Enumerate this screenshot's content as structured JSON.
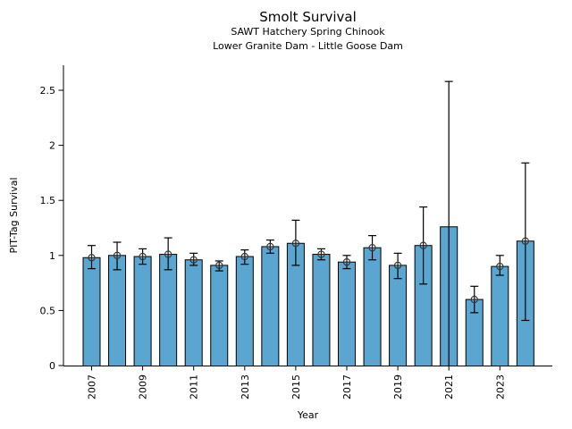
{
  "header": {
    "title": "Smolt Survival",
    "subtitle1": "SAWT Hatchery Spring Chinook",
    "subtitle2": "Lower Granite Dam - Little Goose Dam"
  },
  "chart_data": {
    "type": "bar",
    "title": "Smolt Survival",
    "subtitles": [
      "SAWT Hatchery Spring Chinook",
      "Lower Granite Dam - Little Goose Dam"
    ],
    "xlabel": "Year",
    "ylabel": "PIT-Tag Survival",
    "categories": [
      2007,
      2008,
      2009,
      2010,
      2011,
      2012,
      2013,
      2014,
      2015,
      2016,
      2017,
      2018,
      2019,
      2020,
      2021,
      2022,
      2023,
      2024
    ],
    "values": [
      0.98,
      1.0,
      0.99,
      1.01,
      0.96,
      0.91,
      0.99,
      1.08,
      1.11,
      1.01,
      0.94,
      1.07,
      0.91,
      1.09,
      1.26,
      0.6,
      0.9,
      1.13
    ],
    "error_low": [
      0.88,
      0.87,
      0.92,
      0.87,
      0.91,
      0.86,
      0.92,
      1.02,
      0.91,
      0.96,
      0.88,
      0.96,
      0.79,
      0.74,
      0.0,
      0.48,
      0.82,
      0.41
    ],
    "error_high": [
      1.09,
      1.12,
      1.06,
      1.16,
      1.02,
      0.95,
      1.05,
      1.14,
      1.32,
      1.06,
      1.0,
      1.18,
      1.02,
      1.44,
      2.58,
      0.72,
      1.0,
      1.84
    ],
    "marker": "open-circle-plus",
    "years_without_marker": [
      2021
    ],
    "xtick_labels": [
      "2007",
      "2009",
      "2011",
      "2013",
      "2015",
      "2017",
      "2019",
      "2021",
      "2023"
    ],
    "xtick_years": [
      2007,
      2009,
      2011,
      2013,
      2015,
      2017,
      2019,
      2021,
      2023
    ],
    "yticks": [
      0,
      0.5,
      1,
      1.5,
      2,
      2.5
    ],
    "ytick_labels": [
      "0",
      "0.5",
      "1",
      "1.5",
      "2",
      "2.5"
    ],
    "ylim": [
      0,
      2.73
    ],
    "grid": false,
    "legend": "none",
    "bar_color": "#5BA6D0",
    "bar_edge_color": "#000000",
    "error_color": "#000000",
    "marker_color": "#303030"
  }
}
